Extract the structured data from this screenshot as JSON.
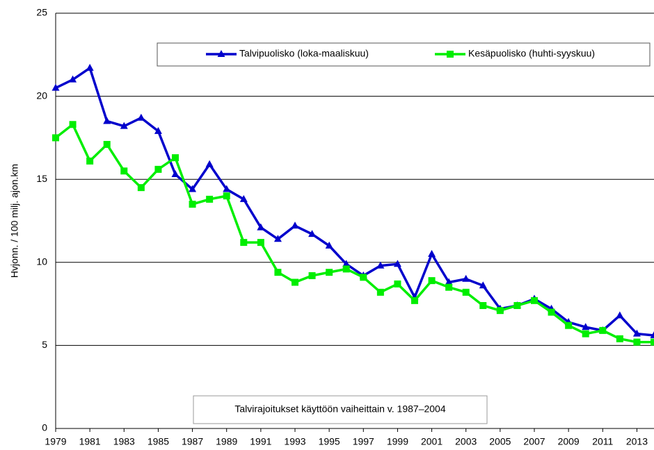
{
  "chart_data": {
    "type": "line",
    "ylabel": "Hvjonn. / 100 milj. ajon.km",
    "annotation": "Talvirajoitukset käyttöön vaiheittain v. 1987–2004",
    "x": [
      1979,
      1980,
      1981,
      1982,
      1983,
      1984,
      1985,
      1986,
      1987,
      1988,
      1989,
      1990,
      1991,
      1992,
      1993,
      1994,
      1995,
      1996,
      1997,
      1998,
      1999,
      2000,
      2001,
      2002,
      2003,
      2004,
      2005,
      2006,
      2007,
      2008,
      2009,
      2010,
      2011,
      2012,
      2013,
      2014
    ],
    "series": [
      {
        "name": "Talvipuolisko (loka-maaliskuu)",
        "color": "#0000cc",
        "marker": "triangle",
        "values": [
          20.5,
          21.0,
          21.7,
          18.5,
          18.2,
          18.7,
          17.9,
          15.3,
          14.4,
          15.9,
          14.4,
          13.8,
          12.1,
          11.4,
          12.2,
          11.7,
          11.0,
          9.9,
          9.2,
          9.8,
          9.9,
          7.9,
          10.5,
          8.8,
          9.0,
          8.6,
          7.2,
          7.4,
          7.8,
          7.2,
          6.4,
          6.1,
          5.9,
          6.8,
          5.7,
          5.6
        ]
      },
      {
        "name": "Kesäpuolisko (huhti-syyskuu)",
        "color": "#00ee00",
        "marker": "square",
        "values": [
          17.5,
          18.3,
          16.1,
          17.1,
          15.5,
          14.5,
          15.6,
          16.3,
          13.5,
          13.8,
          14.0,
          11.2,
          11.2,
          9.4,
          8.8,
          9.2,
          9.4,
          9.6,
          9.1,
          8.2,
          8.7,
          7.7,
          8.9,
          8.5,
          8.2,
          7.4,
          7.1,
          7.4,
          7.7,
          7.0,
          6.2,
          5.7,
          5.9,
          5.4,
          5.2,
          5.2
        ]
      }
    ],
    "xlim": [
      1979,
      2014
    ],
    "xticks": [
      1979,
      1981,
      1983,
      1985,
      1987,
      1989,
      1991,
      1993,
      1995,
      1997,
      1999,
      2001,
      2003,
      2005,
      2007,
      2009,
      2011,
      2013
    ],
    "ylim": [
      0,
      25
    ],
    "yticks": [
      0,
      5,
      10,
      15,
      20,
      25
    ],
    "grid": true
  }
}
